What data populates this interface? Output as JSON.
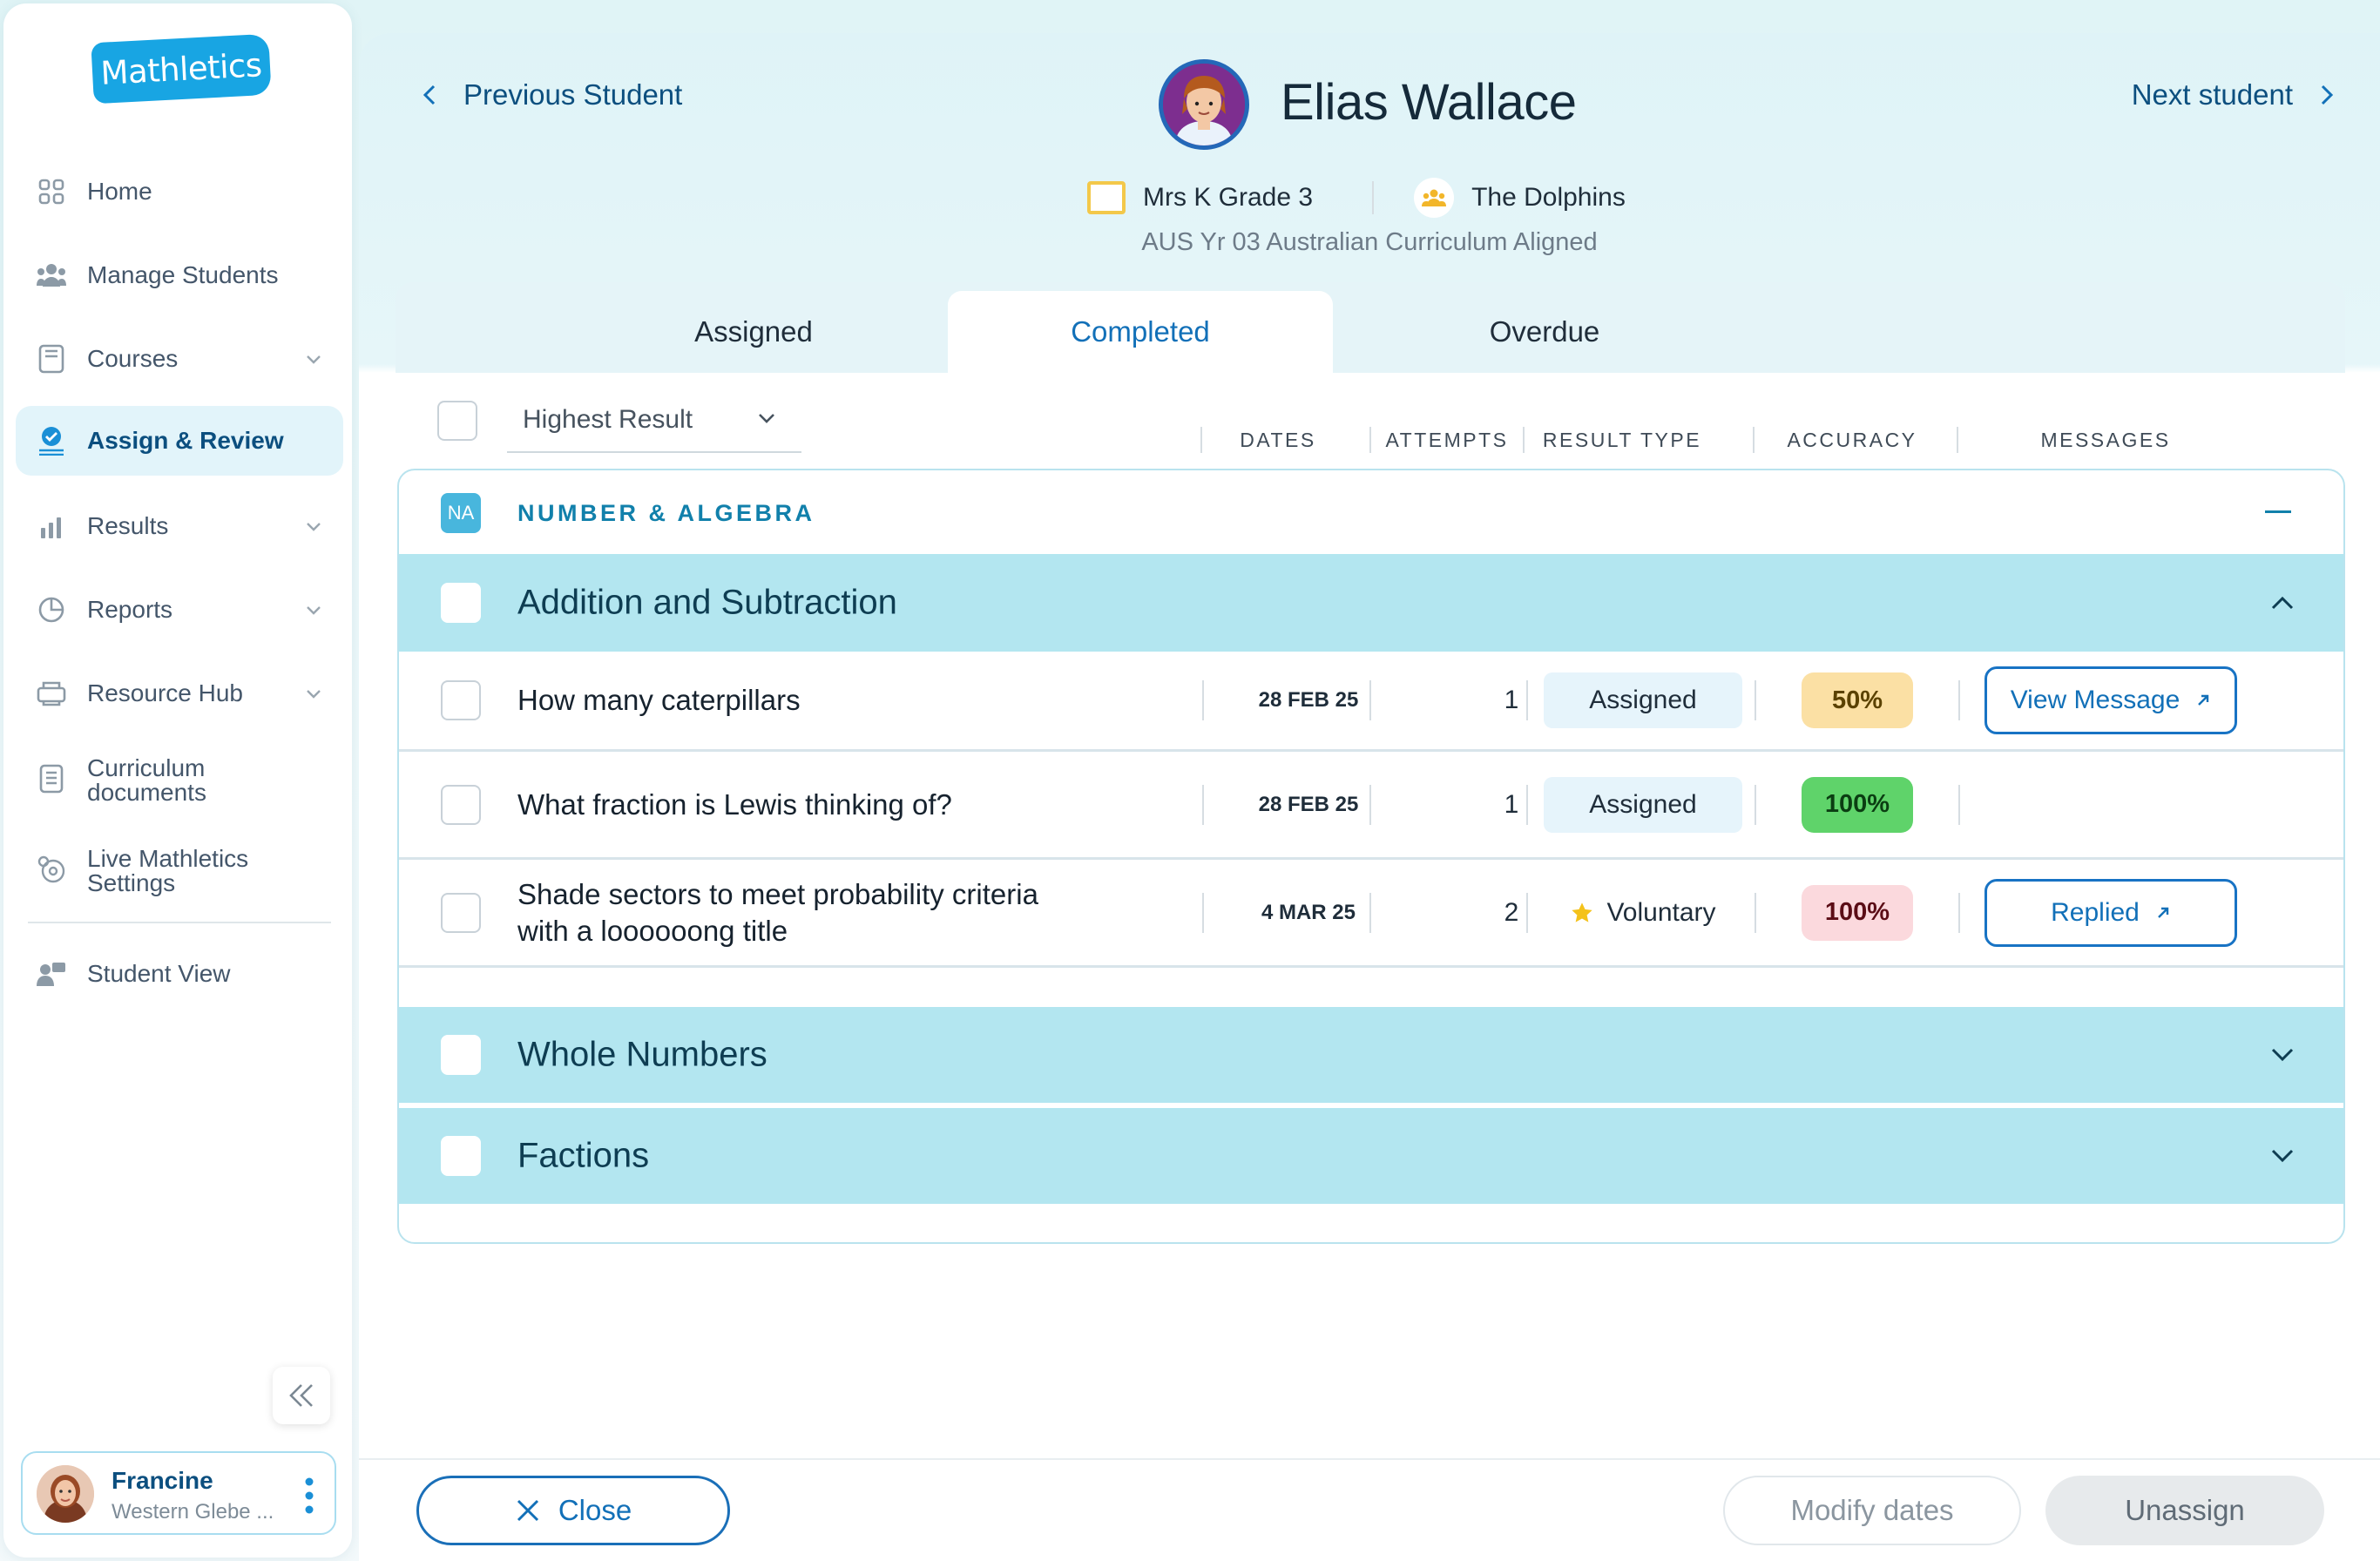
{
  "logo": "Mathletics",
  "nav": {
    "home": "Home",
    "manage_students": "Manage Students",
    "courses": "Courses",
    "assign_review": "Assign & Review",
    "results": "Results",
    "reports": "Reports",
    "resource_hub": "Resource Hub",
    "curriculum_1": "Curriculum",
    "curriculum_2": "documents",
    "live_1": "Live Mathletics",
    "live_2": "Settings",
    "student_view": "Student View"
  },
  "user": {
    "name": "Francine",
    "school": "Western Glebe ..."
  },
  "header": {
    "prev": "Previous Student",
    "next": "Next student",
    "student_name": "Elias Wallace",
    "class_name": "Mrs K Grade 3",
    "group_name": "The Dolphins",
    "curriculum": "AUS Yr 03 Australian Curriculum Aligned"
  },
  "tabs": [
    "Assigned",
    "Completed",
    "Overdue"
  ],
  "active_tab": "Completed",
  "sort": {
    "label": "Highest Result"
  },
  "columns": [
    "DATES",
    "ATTEMPTS",
    "RESULT TYPE",
    "ACCURACY",
    "MESSAGES"
  ],
  "strand": {
    "badge": "NA",
    "title": "NUMBER & ALGEBRA"
  },
  "groups": [
    {
      "title": "Addition and Subtraction",
      "expanded": true
    },
    {
      "title": "Whole Numbers",
      "expanded": false
    },
    {
      "title": "Factions",
      "expanded": false
    }
  ],
  "rows": [
    {
      "title": "How many caterpillars",
      "date": "28 FEB 25",
      "attempts": "1",
      "result_type": "Assigned",
      "accuracy": "50%",
      "accuracy_color": "#fbe0a4",
      "accuracy_text": "#5b4200",
      "message": "View Message"
    },
    {
      "title": "What fraction is Lewis thinking of?",
      "date": "28 FEB 25",
      "attempts": "1",
      "result_type": "Assigned",
      "accuracy": "100%",
      "accuracy_color": "#5fd36a",
      "accuracy_text": "#0b3d12",
      "message": ""
    },
    {
      "title_1": "Shade sectors to meet probability criteria",
      "title_2": "with a loooooong title",
      "date": "4 MAR 25",
      "attempts": "2",
      "result_type": "Voluntary",
      "accuracy": "100%",
      "accuracy_color": "#fbd9dd",
      "accuracy_text": "#5b0d16",
      "message": "Replied"
    }
  ],
  "footer": {
    "close": "Close",
    "modify": "Modify dates",
    "unassign": "Unassign"
  },
  "colors": {
    "brand": "#18a5e3",
    "accent": "#1270b8",
    "group_bg": "#b3e6f0"
  }
}
